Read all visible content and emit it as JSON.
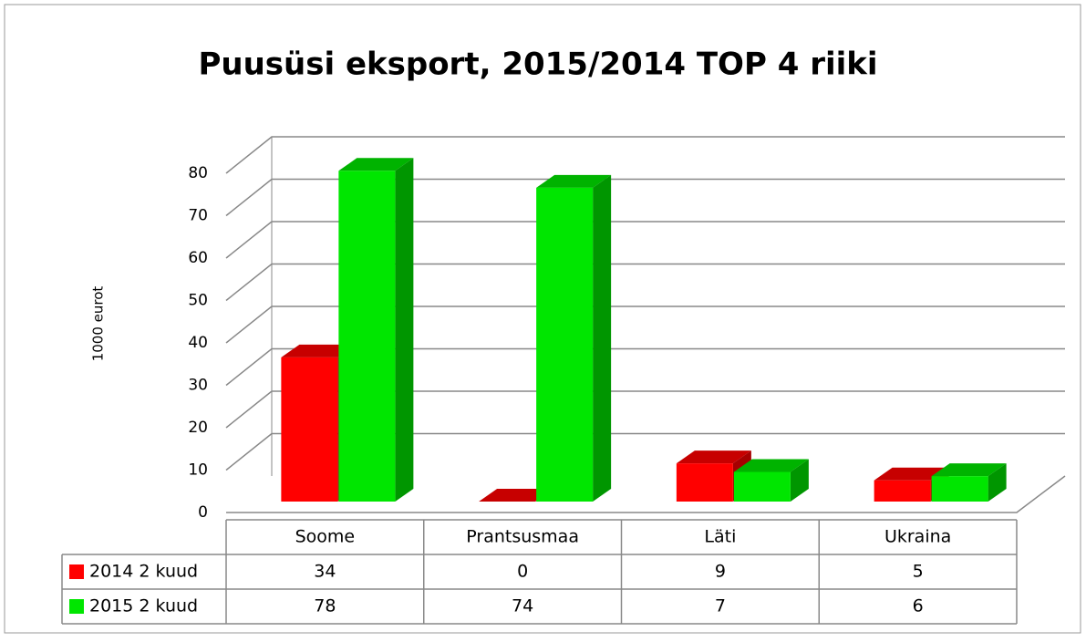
{
  "chart_data": {
    "type": "bar3d",
    "title": "Puusüsi eksport, 2015/2014 TOP 4 riiki",
    "y_label": "1000 eurot",
    "categories": [
      "Soome",
      "Prantsusmaa",
      "Läti",
      "Ukraina"
    ],
    "series": [
      {
        "name": "2014 2 kuud",
        "color": "#ff0000",
        "values": [
          34,
          0,
          9,
          5
        ]
      },
      {
        "name": "2015 2 kuud",
        "color": "#00e600",
        "values": [
          78,
          74,
          7,
          6
        ]
      }
    ],
    "ylim": [
      0,
      80
    ],
    "yticks": [
      0,
      10,
      20,
      30,
      40,
      50,
      60,
      70,
      80
    ],
    "grid": true,
    "data_table": true
  }
}
